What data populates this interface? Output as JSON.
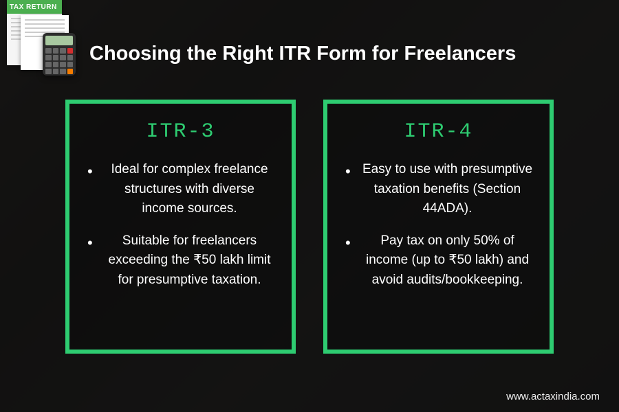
{
  "badge": {
    "headerText": "TAX RETURN"
  },
  "title": "Choosing the Right ITR Form for Freelancers",
  "colors": {
    "accent": "#2ecc71",
    "badgeGreen": "#4caf50",
    "background": "#1a1a1a"
  },
  "cards": [
    {
      "title": "ITR-3",
      "items": [
        "Ideal for complex freelance structures with diverse income sources.",
        "Suitable for freelancers exceeding the ₹50 lakh limit for presumptive taxation."
      ]
    },
    {
      "title": "ITR-4",
      "items": [
        "Easy to use with presumptive taxation benefits (Section 44ADA).",
        "Pay tax on only 50% of income (up to ₹50 lakh) and avoid audits/bookkeeping."
      ]
    }
  ],
  "website": "www.actaxindia.com"
}
